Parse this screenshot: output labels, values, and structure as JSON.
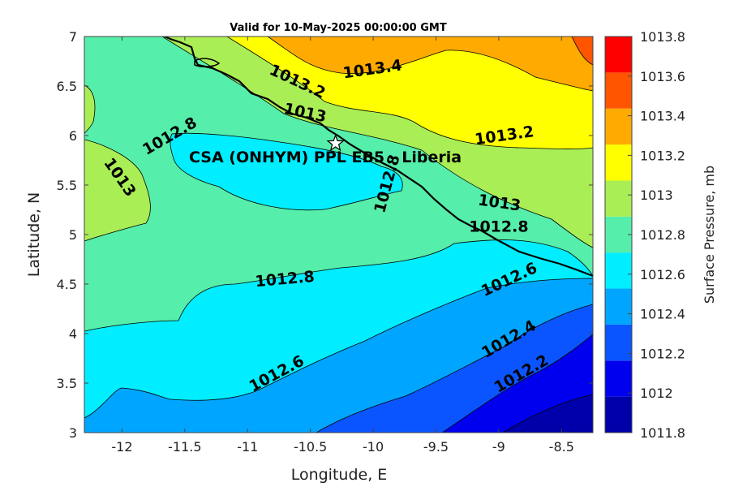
{
  "chart_data": {
    "type": "contour",
    "title": "Valid for 10-May-2025 00:00:00 GMT",
    "xlabel": "Longitude, E",
    "ylabel": "Latitude, N",
    "xlim": [
      -12.3,
      -8.25
    ],
    "ylim": [
      3,
      7
    ],
    "x_ticks": [
      "-12",
      "-11.5",
      "-11",
      "-10.5",
      "-10",
      "-9.5",
      "-9",
      "-8.5"
    ],
    "y_ticks": [
      "3",
      "3.5",
      "4",
      "4.5",
      "5",
      "5.5",
      "6",
      "6.5",
      "7"
    ],
    "colorbar": {
      "label": "Surface Pressure, mb",
      "levels": [
        1011.8,
        1012,
        1012.2,
        1012.4,
        1012.6,
        1012.8,
        1013,
        1013.2,
        1013.4,
        1013.6,
        1013.8
      ],
      "tick_labels": [
        "1011.8",
        "1012",
        "1012.2",
        "1012.4",
        "1012.6",
        "1012.8",
        "1013",
        "1013.2",
        "1013.4",
        "1013.6",
        "1013.8"
      ],
      "colors": [
        "#0000AA",
        "#0000EE",
        "#0A55FF",
        "#00A5FF",
        "#00EEFF",
        "#55EEAA",
        "#AAEE55",
        "#FFFF00",
        "#FFAA00",
        "#FF5500",
        "#FF0000"
      ]
    },
    "contour_labels": [
      {
        "text": "1013.4",
        "lon": -10.0,
        "lat": 6.62
      },
      {
        "text": "1013.2",
        "lon": -10.62,
        "lat": 6.5
      },
      {
        "text": "1013",
        "lon": -10.55,
        "lat": 6.18
      },
      {
        "text": "1013.2",
        "lon": -8.95,
        "lat": 5.95
      },
      {
        "text": "1012.8",
        "lon": -11.6,
        "lat": 5.95
      },
      {
        "text": "1013",
        "lon": -12.05,
        "lat": 5.55
      },
      {
        "text": "1012.8",
        "lon": -9.85,
        "lat": 5.5
      },
      {
        "text": "1013",
        "lon": -9.0,
        "lat": 5.27
      },
      {
        "text": "1012.8",
        "lon": -9.0,
        "lat": 5.03
      },
      {
        "text": "1012.8",
        "lon": -10.7,
        "lat": 4.5
      },
      {
        "text": "1012.6",
        "lon": -8.9,
        "lat": 4.5
      },
      {
        "text": "1012.4",
        "lon": -8.9,
        "lat": 3.9
      },
      {
        "text": "1012.2",
        "lon": -8.8,
        "lat": 3.55
      },
      {
        "text": "1012.6",
        "lon": -10.75,
        "lat": 3.55
      }
    ],
    "station": {
      "name": "CSA (ONHYM) PPL EB5  - Liberia",
      "lon": -10.3,
      "lat": 5.92,
      "marker": "star"
    }
  }
}
